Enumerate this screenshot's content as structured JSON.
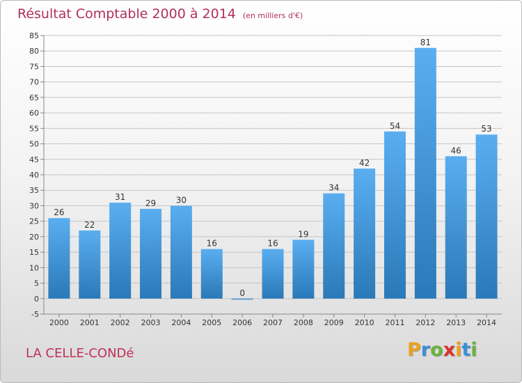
{
  "title": "Résultat Comptable 2000 à 2014",
  "unit": "(en milliers d'€)",
  "commune": "LA CELLE-CONDé",
  "logo": {
    "letters": [
      "P",
      "r",
      "o",
      "x",
      "i",
      "t",
      "i"
    ],
    "colors": [
      "#e8a21c",
      "#3b8fd6",
      "#6ab23e",
      "#d9342b",
      "#e8a21c",
      "#3b8fd6",
      "#6ab23e"
    ]
  },
  "colors": {
    "bar_top": "#5aaef0",
    "bar_bottom": "#2a79b8",
    "title": "#b0305a"
  },
  "chart_data": {
    "type": "bar",
    "categories": [
      "2000",
      "2001",
      "2002",
      "2003",
      "2004",
      "2005",
      "2006",
      "2007",
      "2008",
      "2009",
      "2010",
      "2011",
      "2012",
      "2013",
      "2014"
    ],
    "values": [
      26,
      22,
      31,
      29,
      30,
      16,
      0,
      16,
      19,
      34,
      42,
      54,
      81,
      46,
      53
    ],
    "ylim": [
      -5,
      85
    ],
    "yticks": [
      -5,
      0,
      5,
      10,
      15,
      20,
      25,
      30,
      35,
      40,
      45,
      50,
      55,
      60,
      65,
      70,
      75,
      80,
      85
    ],
    "grid": true
  }
}
